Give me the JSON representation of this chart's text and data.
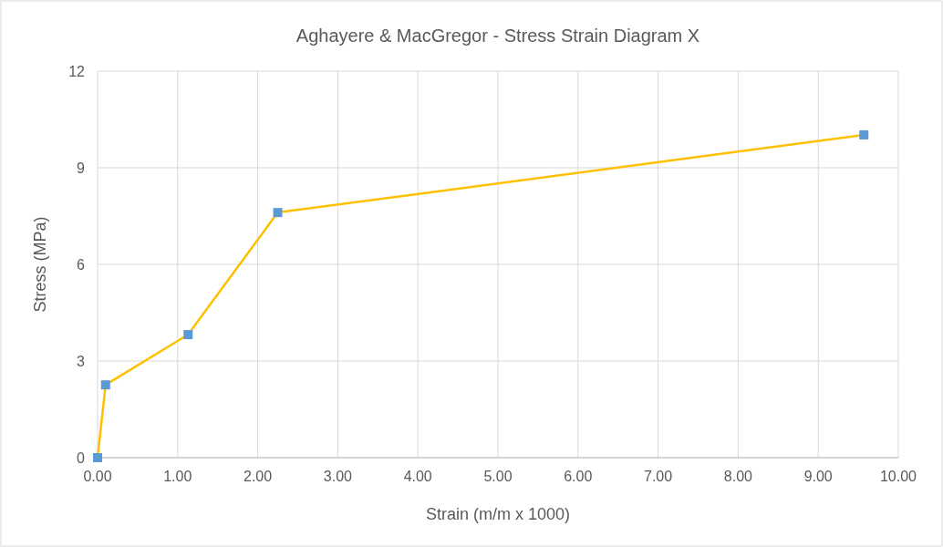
{
  "chart_data": {
    "type": "line",
    "title": "Aghayere & MacGregor - Stress Strain Diagram X",
    "xlabel": "Strain (m/m x 1000)",
    "ylabel": "Stress (MPa)",
    "x": [
      0,
      0.1,
      1.13,
      2.25,
      9.57
    ],
    "series": [
      {
        "color": "#ffc000",
        "colors": [
          "#5b9bd5",
          "#5b9bd5",
          "#5b9bd5",
          "#5b9bd5",
          "#5b9bd5"
        ],
        "values": [
          0,
          2.26,
          3.82,
          7.61,
          10.02
        ]
      }
    ],
    "xlim": [
      0,
      10
    ],
    "ylim": [
      0,
      12
    ],
    "xticks": [
      {
        "value": 0,
        "label": "0.00"
      },
      {
        "value": 1,
        "label": "1.00"
      },
      {
        "value": 2,
        "label": "2.00"
      },
      {
        "value": 3,
        "label": "3.00"
      },
      {
        "value": 4,
        "label": "4.00"
      },
      {
        "value": 5,
        "label": "5.00"
      },
      {
        "value": 6,
        "label": "6.00"
      },
      {
        "value": 7,
        "label": "7.00"
      },
      {
        "value": 8,
        "label": "8.00"
      },
      {
        "value": 9,
        "label": "9.00"
      },
      {
        "value": 10,
        "label": "10.00"
      }
    ],
    "yticks": [
      0,
      3,
      6,
      9,
      12
    ],
    "grid": true,
    "marker": "square",
    "line_style": "solid"
  }
}
